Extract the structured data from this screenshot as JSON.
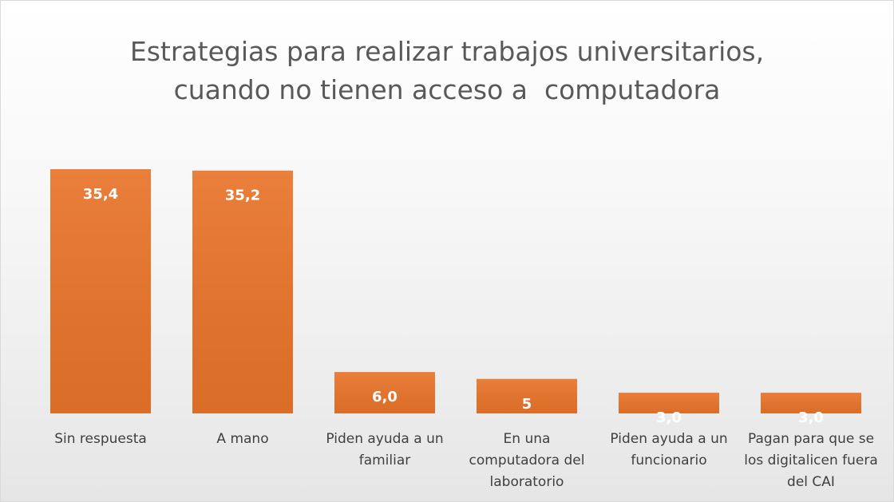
{
  "chart_data": {
    "type": "bar",
    "title": "Estrategias para realizar trabajos universitarios,\ncuando no tienen acceso a  computadora",
    "categories": [
      "Sin respuesta",
      "A mano",
      "Piden ayuda a un familiar",
      "En una computadora del laboratorio",
      "Piden ayuda a un funcionario",
      "Pagan para que se los digitalicen fuera del CAI"
    ],
    "values": [
      35.4,
      35.2,
      6.0,
      5,
      3.0,
      3.0
    ],
    "value_labels": [
      "35,4",
      "35,2",
      "6,0",
      "5",
      "3,0",
      "3,0"
    ],
    "color": "#e8742a"
  }
}
